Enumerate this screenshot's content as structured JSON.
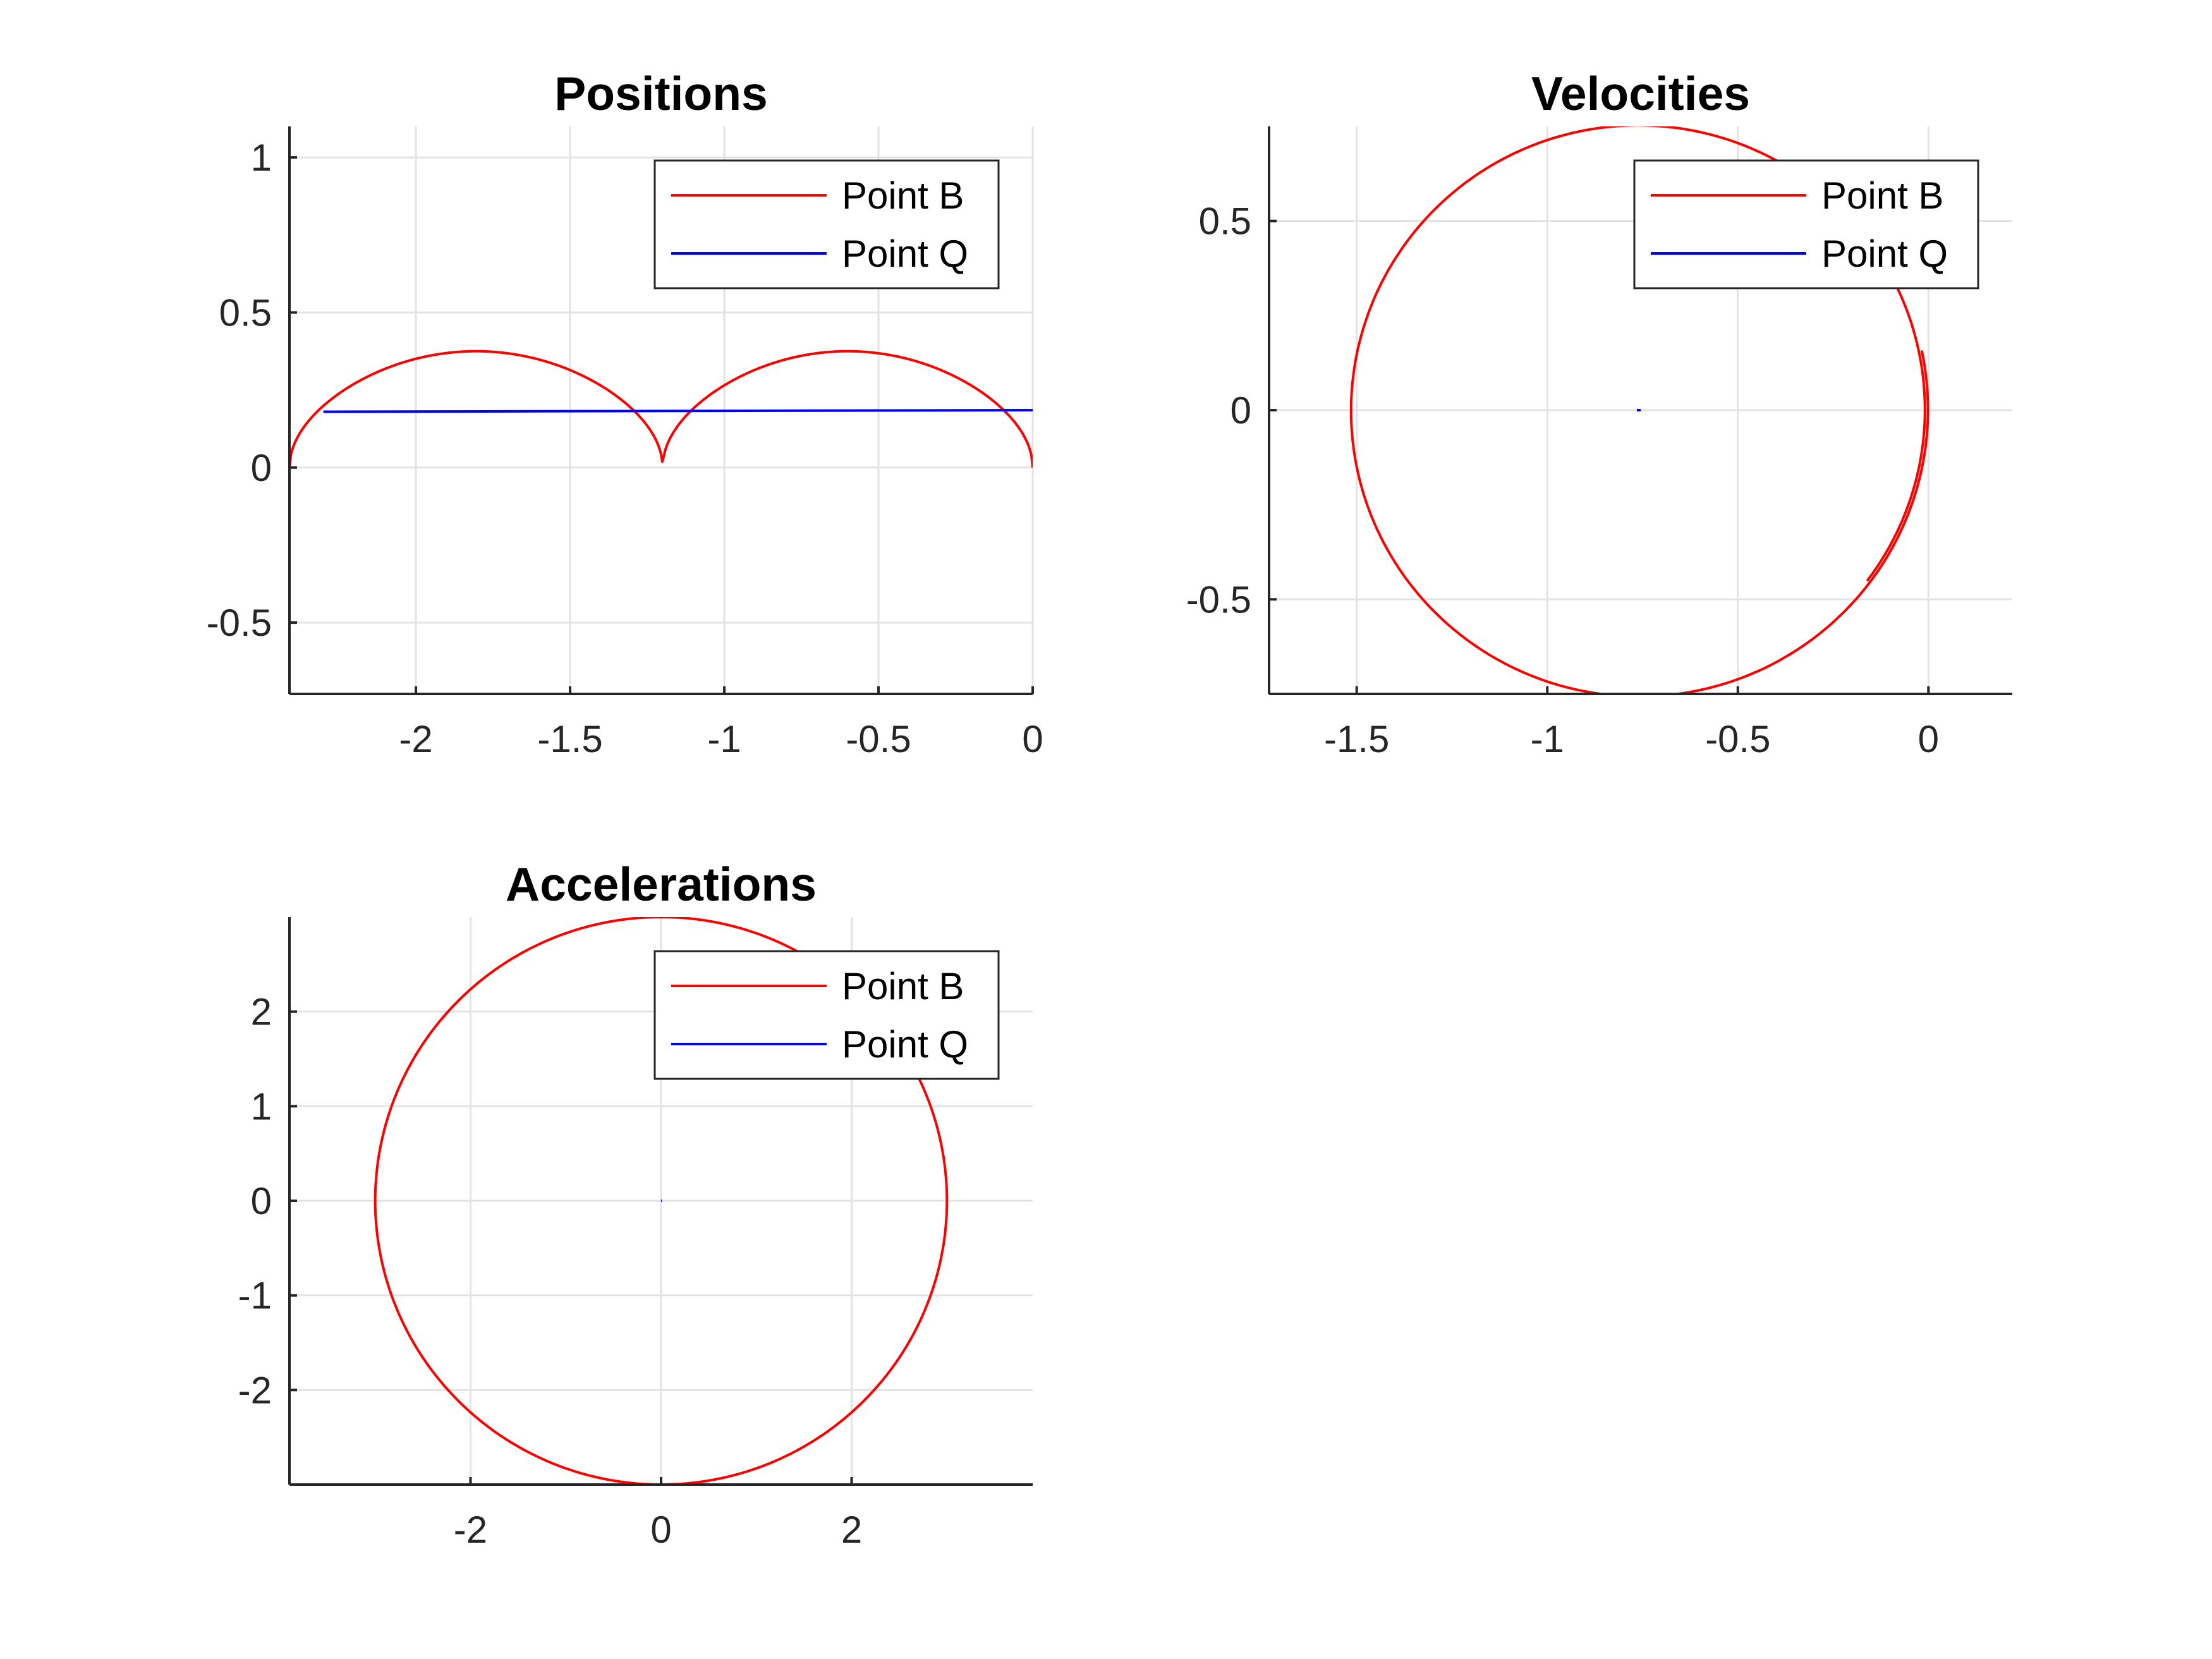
{
  "colors": {
    "point_b": "#ff0000",
    "point_q": "#0000ff",
    "grid": "#e3e3e3",
    "axis": "#262626"
  },
  "chart_data": [
    {
      "type": "line",
      "title": "Positions",
      "xlabel": "",
      "ylabel": "",
      "xlim": [
        -2.41,
        0.0
      ],
      "ylim": [
        -0.73,
        1.1
      ],
      "xticks": [
        -2,
        -1.5,
        -1,
        -0.5,
        0
      ],
      "xtick_labels": [
        "-2",
        "-1.5",
        "-1",
        "-0.5",
        "0"
      ],
      "yticks": [
        -0.5,
        0,
        0.5,
        1
      ],
      "ytick_labels": [
        "-0.5",
        "0",
        "0.5",
        "1"
      ],
      "grid": true,
      "legend": {
        "position": "top-right",
        "entries": [
          "Point B",
          "Point Q"
        ]
      },
      "series": [
        {
          "name": "Point B",
          "color": "#ff0000",
          "curve": "cycloid",
          "x": [
            -2.41,
            -2.33,
            -2.2,
            -2.0,
            -1.8,
            -1.6,
            -1.4,
            -1.3,
            -1.2,
            -1.1,
            -1.0,
            -0.8,
            -0.6,
            -0.4,
            -0.2,
            -0.1,
            -0.03,
            0.0
          ],
          "y": [
            0.0,
            0.18,
            0.29,
            0.355,
            0.375,
            0.355,
            0.25,
            0.15,
            0.0,
            0.15,
            0.25,
            0.355,
            0.375,
            0.355,
            0.29,
            0.2,
            0.12,
            0.0
          ]
        },
        {
          "name": "Point Q",
          "color": "#0000ff",
          "x": [
            -2.3,
            0.0
          ],
          "y": [
            0.18,
            0.185
          ]
        }
      ]
    },
    {
      "type": "line",
      "title": "Velocities",
      "xlabel": "",
      "ylabel": "",
      "xlim": [
        -1.73,
        0.22
      ],
      "ylim": [
        -0.75,
        0.75
      ],
      "xticks": [
        -1.5,
        -1,
        -0.5,
        0
      ],
      "xtick_labels": [
        "-1.5",
        "-1",
        "-0.5",
        "0"
      ],
      "yticks": [
        -0.5,
        0,
        0.5
      ],
      "ytick_labels": [
        "-0.5",
        "0",
        "0.5"
      ],
      "grid": true,
      "legend": {
        "position": "top-right",
        "entries": [
          "Point B",
          "Point Q"
        ]
      },
      "series": [
        {
          "name": "Point B",
          "color": "#ff0000",
          "curve": "circle",
          "center": [
            -0.76,
            0.0
          ],
          "radius": 0.75,
          "from_deg": -37,
          "to_deg": 372,
          "radius_growth": 0.012
        },
        {
          "name": "Point Q",
          "color": "#0000ff",
          "x": [
            -0.765,
            -0.755
          ],
          "y": [
            0.0,
            0.0
          ]
        }
      ]
    },
    {
      "type": "line",
      "title": "Accelerations",
      "xlabel": "",
      "ylabel": "",
      "xlim": [
        -3.9,
        3.9
      ],
      "ylim": [
        -3.0,
        3.0
      ],
      "xticks": [
        -2,
        0,
        2
      ],
      "xtick_labels": [
        "-2",
        "0",
        "2"
      ],
      "yticks": [
        -2,
        -1,
        0,
        1,
        2
      ],
      "ytick_labels": [
        "-2",
        "-1",
        "0",
        "1",
        "2"
      ],
      "grid": true,
      "legend": {
        "position": "top-right",
        "entries": [
          "Point B",
          "Point Q"
        ]
      },
      "series": [
        {
          "name": "Point B",
          "color": "#ff0000",
          "curve": "circle",
          "center": [
            0.0,
            0.0
          ],
          "radius": 3.0,
          "from_deg": 0,
          "to_deg": 360,
          "radius_growth": 0
        },
        {
          "name": "Point Q",
          "color": "#0000ff",
          "x": [
            0.0
          ],
          "y": [
            0.0
          ]
        }
      ]
    }
  ]
}
